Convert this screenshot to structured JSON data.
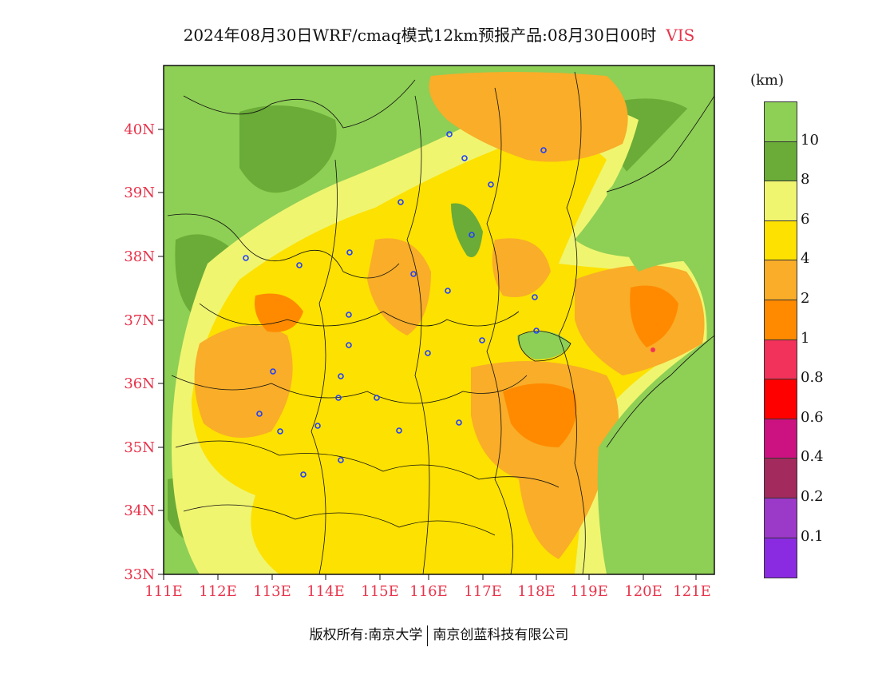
{
  "title": {
    "main": "2024年08月30日WRF/cmaq模式12km预报产品:08月30日00时",
    "variable": "VIS"
  },
  "map": {
    "x_labels": [
      "111E",
      "112E",
      "113E",
      "114E",
      "115E",
      "116E",
      "117E",
      "118E",
      "119E",
      "120E",
      "121E"
    ],
    "y_labels": [
      "40N",
      "39N",
      "38N",
      "37N",
      "36N",
      "35N",
      "34N",
      "33N"
    ]
  },
  "legend": {
    "unit": "(km)",
    "labels": [
      "10",
      "8",
      "6",
      "4",
      "2",
      "1",
      "0.8",
      "0.6",
      "0.4",
      "0.2",
      "0.1"
    ],
    "colors": [
      "#8ecf55",
      "#6aac37",
      "#f0f570",
      "#fde100",
      "#f9ad28",
      "#ff8a00",
      "#f2325a",
      "#ff0000",
      "#cc1280",
      "#a32a5c",
      "#9b39c8",
      "#8a2be2"
    ]
  },
  "footer": {
    "left": "版权所有:南京大学",
    "right": "南京创蓝科技有限公司"
  },
  "colors": {
    "accent_red": "#e8334a",
    "city_marker": "#1f3fff"
  }
}
